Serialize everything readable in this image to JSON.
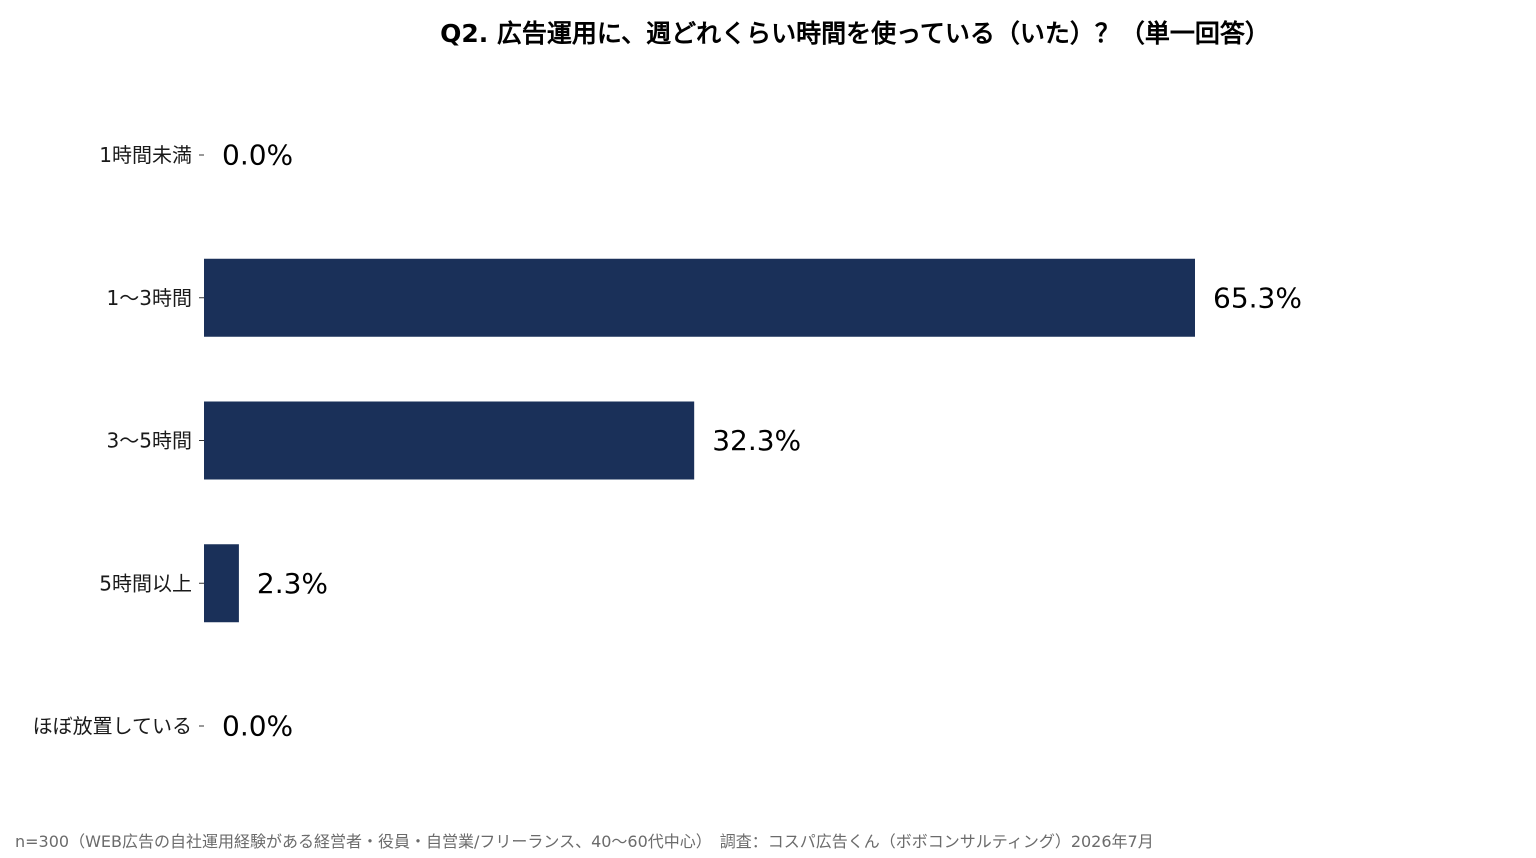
{
  "chart_data": {
    "type": "bar",
    "orientation": "horizontal",
    "title": "Q2. 広告運用に、週どれくらい時間を使っている（いた）？（単一回答）",
    "categories": [
      "1時間未満",
      "1〜3時間",
      "3〜5時間",
      "5時間以上",
      "ほぼ放置している"
    ],
    "values": [
      0.0,
      65.3,
      32.3,
      2.3,
      0.0
    ],
    "value_labels": [
      "0.0%",
      "65.3%",
      "32.3%",
      "2.3%",
      "0.0%"
    ],
    "unit": "%",
    "xlim": [
      0,
      65.3
    ],
    "grid": false,
    "legend": "none",
    "bar_color": "#1a3059"
  },
  "footnote": "n=300（WEB広告の自社運用経験がある経営者・役員・自営業/フリーランス、40〜60代中心）　調査：コスパ広告くん（ボボコンサルティング）2026年7月"
}
